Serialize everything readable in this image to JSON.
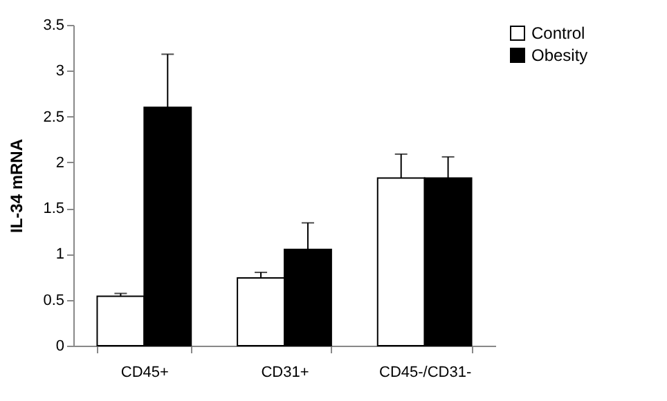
{
  "chart_data": {
    "type": "bar",
    "ylabel": "IL-34 mRNA",
    "categories": [
      "CD45+",
      "CD31+",
      "CD45-/CD31-"
    ],
    "series": [
      {
        "name": "Control",
        "color": "#ffffff",
        "values": [
          0.54,
          0.74,
          1.83
        ],
        "errors": [
          [
            0.54,
            0.57
          ],
          [
            0.74,
            0.8
          ],
          [
            1.83,
            2.09
          ]
        ]
      },
      {
        "name": "Obesity",
        "color": "#000000",
        "values": [
          2.6,
          1.05,
          1.83
        ],
        "errors": [
          [
            2.6,
            3.18
          ],
          [
            1.05,
            1.34
          ],
          [
            1.83,
            2.06
          ]
        ]
      }
    ],
    "ylim": [
      0,
      3.5
    ],
    "yticks": [
      0,
      0.5,
      1,
      1.5,
      2,
      2.5,
      3,
      3.5
    ],
    "grid": false,
    "legend": "right"
  }
}
